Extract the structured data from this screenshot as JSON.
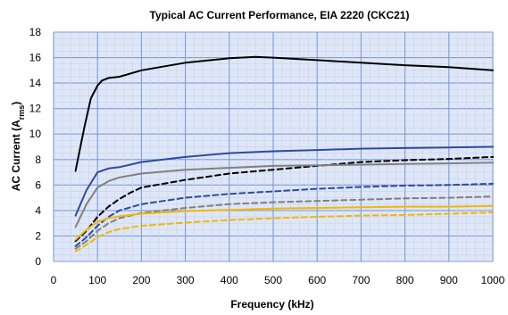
{
  "chart_data": {
    "type": "line",
    "title": "Typical AC Current Performance, EIA 2220 (CKC21)",
    "xlabel": "Frequency (kHz)",
    "ylabel": {
      "main": "AC Current (A",
      "sub": "rms",
      "end": ")"
    },
    "xlim": [
      0,
      1000
    ],
    "ylim": [
      0,
      18
    ],
    "xticks": [
      0,
      100,
      200,
      300,
      400,
      500,
      600,
      700,
      800,
      900,
      1000
    ],
    "yticks": [
      0,
      2,
      4,
      6,
      8,
      10,
      12,
      14,
      16,
      18
    ],
    "grid": {
      "major_color": "#7f9bd8",
      "minor_color": "#c9d5ef",
      "background": "#dfe7f7"
    },
    "series": [
      {
        "color": "#000000",
        "dash": "solid",
        "x": [
          50,
          70,
          85,
          100,
          110,
          125,
          150,
          200,
          300,
          400,
          460,
          500,
          600,
          700,
          800,
          900,
          1000
        ],
        "y": [
          7.1,
          10.5,
          12.8,
          13.8,
          14.2,
          14.4,
          14.5,
          15.0,
          15.6,
          15.95,
          16.05,
          16.0,
          15.8,
          15.6,
          15.4,
          15.25,
          15.0
        ]
      },
      {
        "color": "#2e4aa0",
        "dash": "solid",
        "x": [
          50,
          75,
          100,
          125,
          150,
          200,
          300,
          400,
          500,
          600,
          700,
          800,
          900,
          1000
        ],
        "y": [
          3.6,
          5.6,
          7.0,
          7.3,
          7.4,
          7.8,
          8.2,
          8.5,
          8.65,
          8.75,
          8.85,
          8.9,
          8.95,
          9.0
        ]
      },
      {
        "color": "#000000",
        "dash": "dashed",
        "x": [
          50,
          75,
          100,
          125,
          150,
          175,
          200,
          300,
          400,
          500,
          600,
          700,
          800,
          900,
          1000
        ],
        "y": [
          1.6,
          2.4,
          3.5,
          4.3,
          4.9,
          5.4,
          5.8,
          6.4,
          6.9,
          7.2,
          7.5,
          7.8,
          7.95,
          8.05,
          8.2
        ]
      },
      {
        "color": "#808080",
        "dash": "solid",
        "x": [
          50,
          75,
          100,
          125,
          150,
          200,
          300,
          400,
          500,
          600,
          700,
          800,
          900,
          1000
        ],
        "y": [
          2.7,
          4.5,
          5.8,
          6.3,
          6.6,
          6.9,
          7.2,
          7.35,
          7.5,
          7.55,
          7.6,
          7.65,
          7.7,
          7.75
        ]
      },
      {
        "color": "#2e4aa0",
        "dash": "dashed",
        "x": [
          50,
          75,
          100,
          125,
          150,
          200,
          300,
          400,
          500,
          600,
          700,
          800,
          900,
          1000
        ],
        "y": [
          1.2,
          1.9,
          2.8,
          3.5,
          4.0,
          4.5,
          5.0,
          5.3,
          5.5,
          5.7,
          5.85,
          5.95,
          6.0,
          6.1
        ]
      },
      {
        "color": "#808080",
        "dash": "dashed",
        "x": [
          50,
          75,
          100,
          125,
          150,
          200,
          300,
          400,
          500,
          600,
          700,
          800,
          900,
          1000
        ],
        "y": [
          1.0,
          1.6,
          2.4,
          3.0,
          3.4,
          3.8,
          4.2,
          4.5,
          4.65,
          4.75,
          4.85,
          4.95,
          5.0,
          5.1
        ]
      },
      {
        "color": "#f0b800",
        "dash": "solid",
        "x": [
          50,
          75,
          100,
          125,
          150,
          200,
          300,
          400,
          500,
          600,
          700,
          800,
          900,
          1000
        ],
        "y": [
          1.7,
          2.5,
          3.1,
          3.4,
          3.55,
          3.75,
          3.95,
          4.05,
          4.15,
          4.2,
          4.25,
          4.3,
          4.3,
          4.35
        ]
      },
      {
        "color": "#f0b800",
        "dash": "dashed",
        "x": [
          50,
          75,
          100,
          125,
          150,
          200,
          300,
          400,
          500,
          600,
          700,
          800,
          900,
          1000
        ],
        "y": [
          0.8,
          1.3,
          1.9,
          2.3,
          2.55,
          2.8,
          3.05,
          3.25,
          3.4,
          3.5,
          3.6,
          3.65,
          3.75,
          3.85
        ]
      }
    ]
  }
}
